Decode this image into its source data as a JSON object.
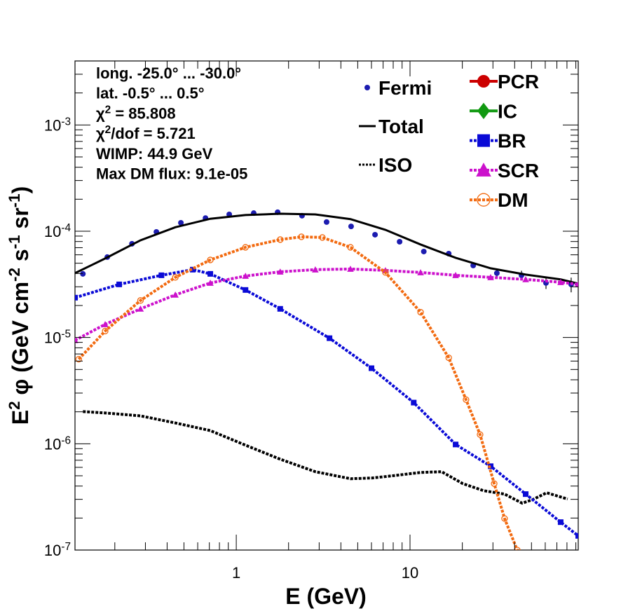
{
  "chart_data": {
    "type": "line",
    "xlabel": "E (GeV)",
    "ylabel": "E^{2} φ (GeV cm^{-2} s^{-1} sr^{-1})",
    "annotations": [
      "long. -25.0° ... -30.0°",
      "lat. -0.5° ... 0.5°",
      "χ^{2} = 85.808",
      "χ^{2}/dof = 5.721",
      "WIMP: 44.9 GeV",
      "Max DM flux: 9.1e-05"
    ],
    "log_x": true,
    "log_y": true,
    "xlim": [
      0.118,
      92.9
    ],
    "ylim": [
      1e-07,
      0.004
    ],
    "xticks": [
      1,
      10
    ],
    "xminor_ticks": [
      0.2,
      0.3,
      0.4,
      0.5,
      0.6,
      0.7,
      0.8,
      0.9,
      2,
      3,
      4,
      5,
      6,
      7,
      8,
      9,
      20,
      30,
      40,
      50,
      60,
      70,
      80,
      90
    ],
    "yticks": [
      {
        "value": 1e-07,
        "label": "10^{-7}"
      },
      {
        "value": 1e-06,
        "label": "10^{-6}"
      },
      {
        "value": 1e-05,
        "label": "10^{-5}"
      },
      {
        "value": 0.0001,
        "label": "10^{-4}"
      },
      {
        "value": 0.001,
        "label": "10^{-3}"
      }
    ],
    "yminor_ticks": [
      2e-07,
      3e-07,
      4e-07,
      5e-07,
      6e-07,
      7e-07,
      8e-07,
      9e-07,
      2e-06,
      3e-06,
      4e-06,
      5e-06,
      6e-06,
      7e-06,
      8e-06,
      9e-06,
      2e-05,
      3e-05,
      4e-05,
      5e-05,
      6e-05,
      7e-05,
      8e-05,
      9e-05,
      0.0002,
      0.0003,
      0.0004,
      0.0005,
      0.0006,
      0.0007,
      0.0008,
      0.0009,
      0.002,
      0.003,
      0.004
    ],
    "series": [
      {
        "name": "Fermi",
        "color": "#1c1cb0",
        "marker": "circle",
        "line": "none",
        "legend_column": 1,
        "x": [
          0.131,
          0.181,
          0.251,
          0.347,
          0.48,
          0.665,
          0.911,
          1.26,
          1.73,
          2.39,
          3.31,
          4.58,
          6.29,
          8.71,
          12.0,
          16.7,
          23.1,
          31.6,
          43.8,
          60.6,
          84.6
        ],
        "values": [
          3.97e-05,
          5.71e-05,
          7.62e-05,
          9.85e-05,
          0.00012,
          0.000133,
          0.000144,
          0.000148,
          0.000151,
          0.00014,
          0.000122,
          0.000111,
          9.27e-05,
          7.96e-05,
          6.44e-05,
          6.15e-05,
          4.76e-05,
          4.03e-05,
          3.85e-05,
          3.26e-05,
          3.16e-05
        ],
        "errors": [
          1e-06,
          1e-06,
          1.5e-06,
          2e-06,
          2e-06,
          2e-06,
          2e-06,
          2e-06,
          2e-06,
          2e-06,
          2e-06,
          2e-06,
          2e-06,
          2e-06,
          2e-06,
          2e-06,
          2.5e-06,
          3e-06,
          4e-06,
          4e-06,
          5e-06
        ]
      },
      {
        "name": "Total",
        "color": "#000000",
        "marker": "none",
        "line": "solid",
        "legend_column": 1,
        "x": [
          0.118,
          0.176,
          0.281,
          0.446,
          0.709,
          1.13,
          1.79,
          2.85,
          4.54,
          7.22,
          11.5,
          18.3,
          29.1,
          46.3,
          73.6,
          92.9
        ],
        "values": [
          4.03e-05,
          5.54e-05,
          8.21e-05,
          0.000109,
          0.000131,
          0.000142,
          0.000146,
          0.000144,
          0.00013,
          0.000103,
          7.5e-05,
          5.62e-05,
          4.48e-05,
          3.91e-05,
          3.52e-05,
          3.21e-05
        ]
      },
      {
        "name": "ISO",
        "color": "#000000",
        "marker": "none",
        "line": "dotted",
        "legend_column": 1,
        "x": [
          0.131,
          0.176,
          0.281,
          0.446,
          0.709,
          1.13,
          1.79,
          2.85,
          4.54,
          6.0,
          7.22,
          11.5,
          15.2,
          20.1,
          26.5,
          35.0,
          44.2,
          50.8,
          61.1,
          80.7
        ],
        "values": [
          2.01e-06,
          1.95e-06,
          1.83e-06,
          1.57e-06,
          1.33e-06,
          9.7e-07,
          7.16e-07,
          5.46e-07,
          4.69e-07,
          4.76e-07,
          4.91e-07,
          5.37e-07,
          5.46e-07,
          4.22e-07,
          3.62e-07,
          3.36e-07,
          2.76e-07,
          2.98e-07,
          3.46e-07,
          3.02e-07
        ]
      },
      {
        "name": "PCR",
        "color": "#cc0000",
        "marker": "circle",
        "line": "solid",
        "legend_column": 2,
        "x": [],
        "values": []
      },
      {
        "name": "IC",
        "color": "#119911",
        "marker": "diamond",
        "line": "solid",
        "legend_column": 2,
        "x": [],
        "values": []
      },
      {
        "name": "BR",
        "color": "#0a0ad6",
        "marker": "square",
        "line": "dotted",
        "legend_column": 2,
        "x": [
          0.118,
          0.212,
          0.371,
          0.562,
          0.709,
          1.13,
          1.79,
          3.44,
          6.0,
          10.5,
          18.3,
          29.1,
          46.3,
          73.6,
          92.9
        ],
        "values": [
          2.37e-05,
          3.16e-05,
          3.85e-05,
          4.35e-05,
          3.97e-05,
          2.8e-05,
          1.86e-05,
          9.85e-06,
          5.14e-06,
          2.44e-06,
          9.85e-07,
          6.15e-07,
          3.36e-07,
          1.83e-07,
          1.36e-07
        ]
      },
      {
        "name": "SCR",
        "color": "#cc11cc",
        "marker": "triangle",
        "line": "dotted",
        "legend_column": 2,
        "x": [
          0.118,
          0.176,
          0.281,
          0.446,
          0.709,
          1.13,
          1.79,
          2.85,
          4.54,
          7.22,
          11.5,
          18.3,
          29.1,
          46.3,
          73.6,
          92.9
        ],
        "values": [
          9.41e-06,
          1.33e-05,
          1.86e-05,
          2.52e-05,
          3.26e-05,
          3.79e-05,
          4.15e-05,
          4.35e-05,
          4.41e-05,
          4.28e-05,
          4.09e-05,
          3.85e-05,
          3.68e-05,
          3.52e-05,
          3.31e-05,
          3.16e-05
        ]
      },
      {
        "name": "DM",
        "color": "#f26a10",
        "marker": "open-circle",
        "line": "dotted",
        "legend_column": 2,
        "x": [
          0.124,
          0.176,
          0.281,
          0.446,
          0.709,
          1.13,
          1.79,
          2.37,
          3.13,
          4.54,
          7.22,
          11.5,
          16.7,
          21.0,
          25.3,
          30.5,
          35.0,
          41.4
        ],
        "values": [
          6.25e-06,
          1.15e-05,
          2.23e-05,
          3.68e-05,
          5.37e-05,
          7.06e-05,
          8.34e-05,
          8.86e-05,
          8.73e-05,
          7.06e-05,
          4.09e-05,
          1.73e-05,
          6.44e-06,
          2.6e-06,
          1.22e-06,
          4.22e-07,
          1.98e-07,
          1e-07
        ]
      }
    ]
  }
}
